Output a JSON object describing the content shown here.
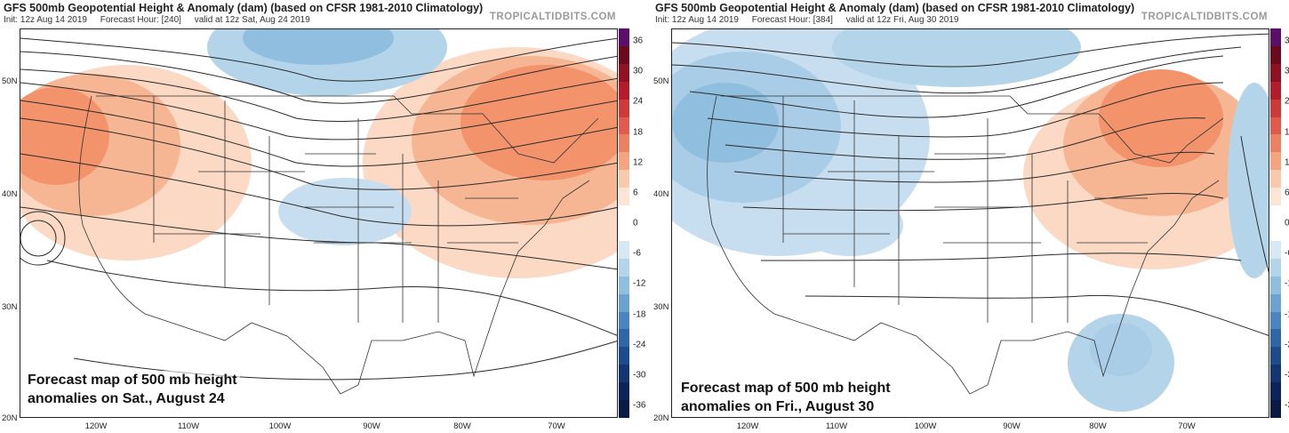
{
  "panels": [
    {
      "title": "GFS 500mb Geopotential Height & Anomaly (dam) (based on CFSR 1981-2010 Climatology)",
      "init": "Init: 12z Aug 14 2019",
      "forecast_hour": "Forecast Hour: [240]",
      "valid": "valid at 12z Sat, Aug 24 2019",
      "brand": "TROPICALTIDBITS.COM",
      "caption_line1": "Forecast map of 500 mb height",
      "caption_line2": "anomalies on Sat., August 24",
      "lat_labels": [
        "50N",
        "40N",
        "30N",
        "20N"
      ],
      "lon_labels": [
        "120W",
        "110W",
        "100W",
        "90W",
        "80W",
        "70W"
      ],
      "contours": [
        "561",
        "564",
        "567",
        "570",
        "573",
        "576",
        "579",
        "582",
        "585",
        "588",
        "591"
      ]
    },
    {
      "title": "GFS 500mb Geopotential Height & Anomaly (dam) (based on CFSR 1981-2010 Climatology)",
      "init": "Init: 12z Aug 14 2019",
      "forecast_hour": "Forecast Hour: [384]",
      "valid": "valid at 12z Fri, Aug 30 2019",
      "brand": "TROPICALTIDBITS.COM",
      "caption_line1": "Forecast map of 500 mb height",
      "caption_line2": "anomalies on Fri., August 30",
      "lat_labels": [
        "50N",
        "40N",
        "30N",
        "20N"
      ],
      "lon_labels": [
        "120W",
        "110W",
        "100W",
        "90W",
        "80W",
        "70W"
      ],
      "contours": [
        "561",
        "564",
        "567",
        "570",
        "573",
        "576",
        "579",
        "582",
        "585",
        "588",
        "591"
      ]
    }
  ],
  "colorbar": {
    "labels": [
      "36",
      "30",
      "24",
      "18",
      "12",
      "6",
      "0",
      "-6",
      "-12",
      "-18",
      "-24",
      "-30",
      "-36"
    ],
    "colors": [
      "#5b0f6b",
      "#6a0a1c",
      "#8e1224",
      "#b11d2b",
      "#cc3a3a",
      "#e05a4e",
      "#ec8062",
      "#f4a580",
      "#f9c9ae",
      "#fde5d6",
      "#ffffff",
      "#ffffff",
      "#d6e8f3",
      "#b4d4ea",
      "#8fbedf",
      "#6aa3d0",
      "#4a85bf",
      "#2f66a8",
      "#1d4b8c",
      "#133571",
      "#0c2458",
      "#0a1a44"
    ]
  },
  "colors": {
    "positive_anomaly": "#f2936c",
    "negative_anomaly": "#8dbedf",
    "contour": "#2a2a2a",
    "border": "#333333"
  }
}
